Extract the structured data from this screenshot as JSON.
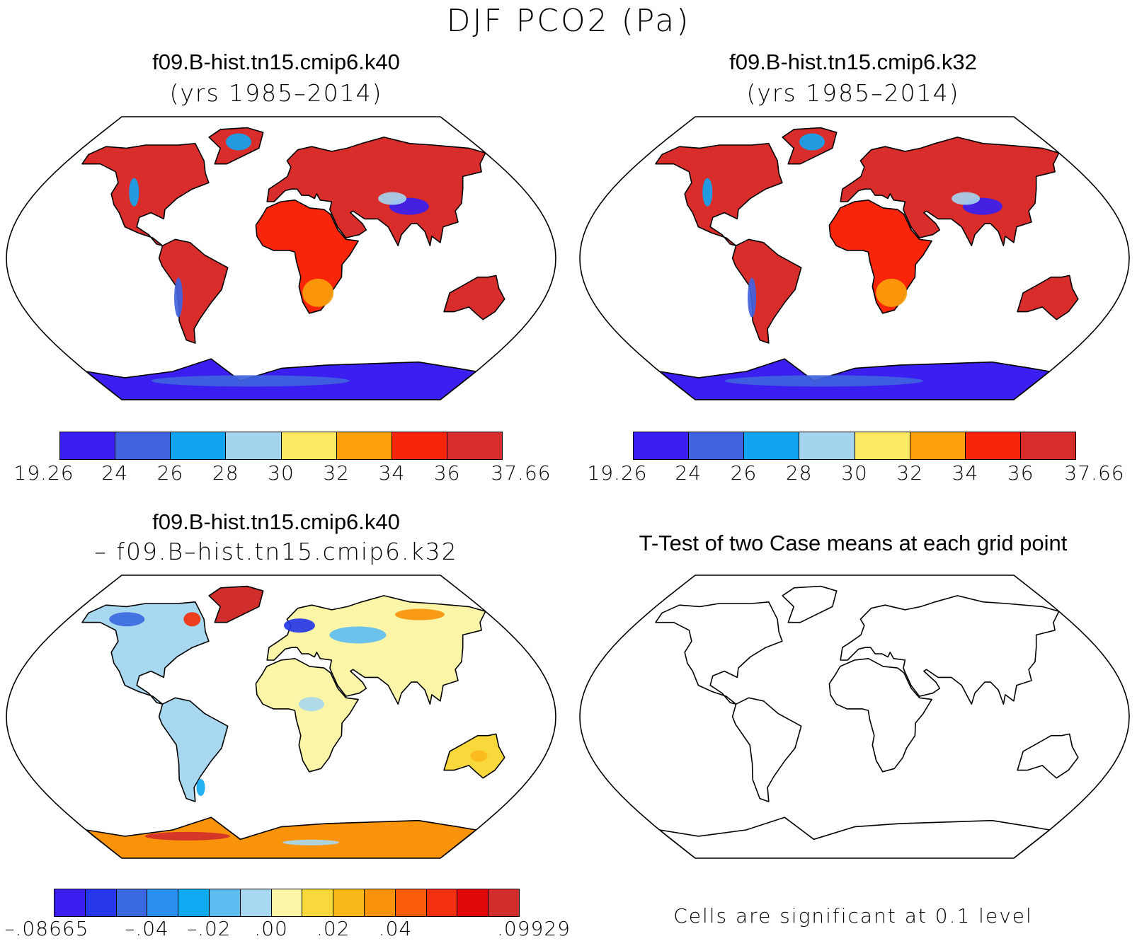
{
  "title": "DJF PCO2 (Pa)",
  "panels": [
    {
      "title": "f09.B-hist.tn15.cmip6.k40",
      "subtitle": "(yrs 1985–2014)"
    },
    {
      "title": "f09.B-hist.tn15.cmip6.k32",
      "subtitle": "(yrs 1985–2014)"
    },
    {
      "title": "f09.B-hist.tn15.cmip6.k40",
      "subtitle": "– f09.B–hist.tn15.cmip6.k32"
    },
    {
      "title": "T-Test of two Case means at each grid point",
      "subtitle": ""
    }
  ],
  "colorbars": {
    "absolute": {
      "colors": [
        "#3a1ff0",
        "#4063de",
        "#13a4ef",
        "#a5d4ee",
        "#fbe865",
        "#fb9f0c",
        "#f9250a",
        "#d82d2a"
      ],
      "labels": [
        "19.26",
        "24",
        "26",
        "28",
        "30",
        "32",
        "34",
        "36",
        "37.66"
      ]
    },
    "difference": {
      "colors": [
        "#3a1ff0",
        "#2537e8",
        "#3b6ae0",
        "#2a8ff0",
        "#10aaf2",
        "#5ebdf0",
        "#a8d8ef",
        "#fbf5a8",
        "#f8d83a",
        "#f9b81b",
        "#f9930a",
        "#f95c0b",
        "#f2300d",
        "#e00808",
        "#d12e2b"
      ],
      "labels": [
        "–.08665",
        "–.04",
        "–.02",
        ".00",
        ".02",
        ".04",
        ".09929"
      ]
    }
  },
  "ttest_note": "Cells are significant at 0.1 level",
  "map_colors": {
    "ocean": "#ffffff",
    "outline": "#000000"
  }
}
